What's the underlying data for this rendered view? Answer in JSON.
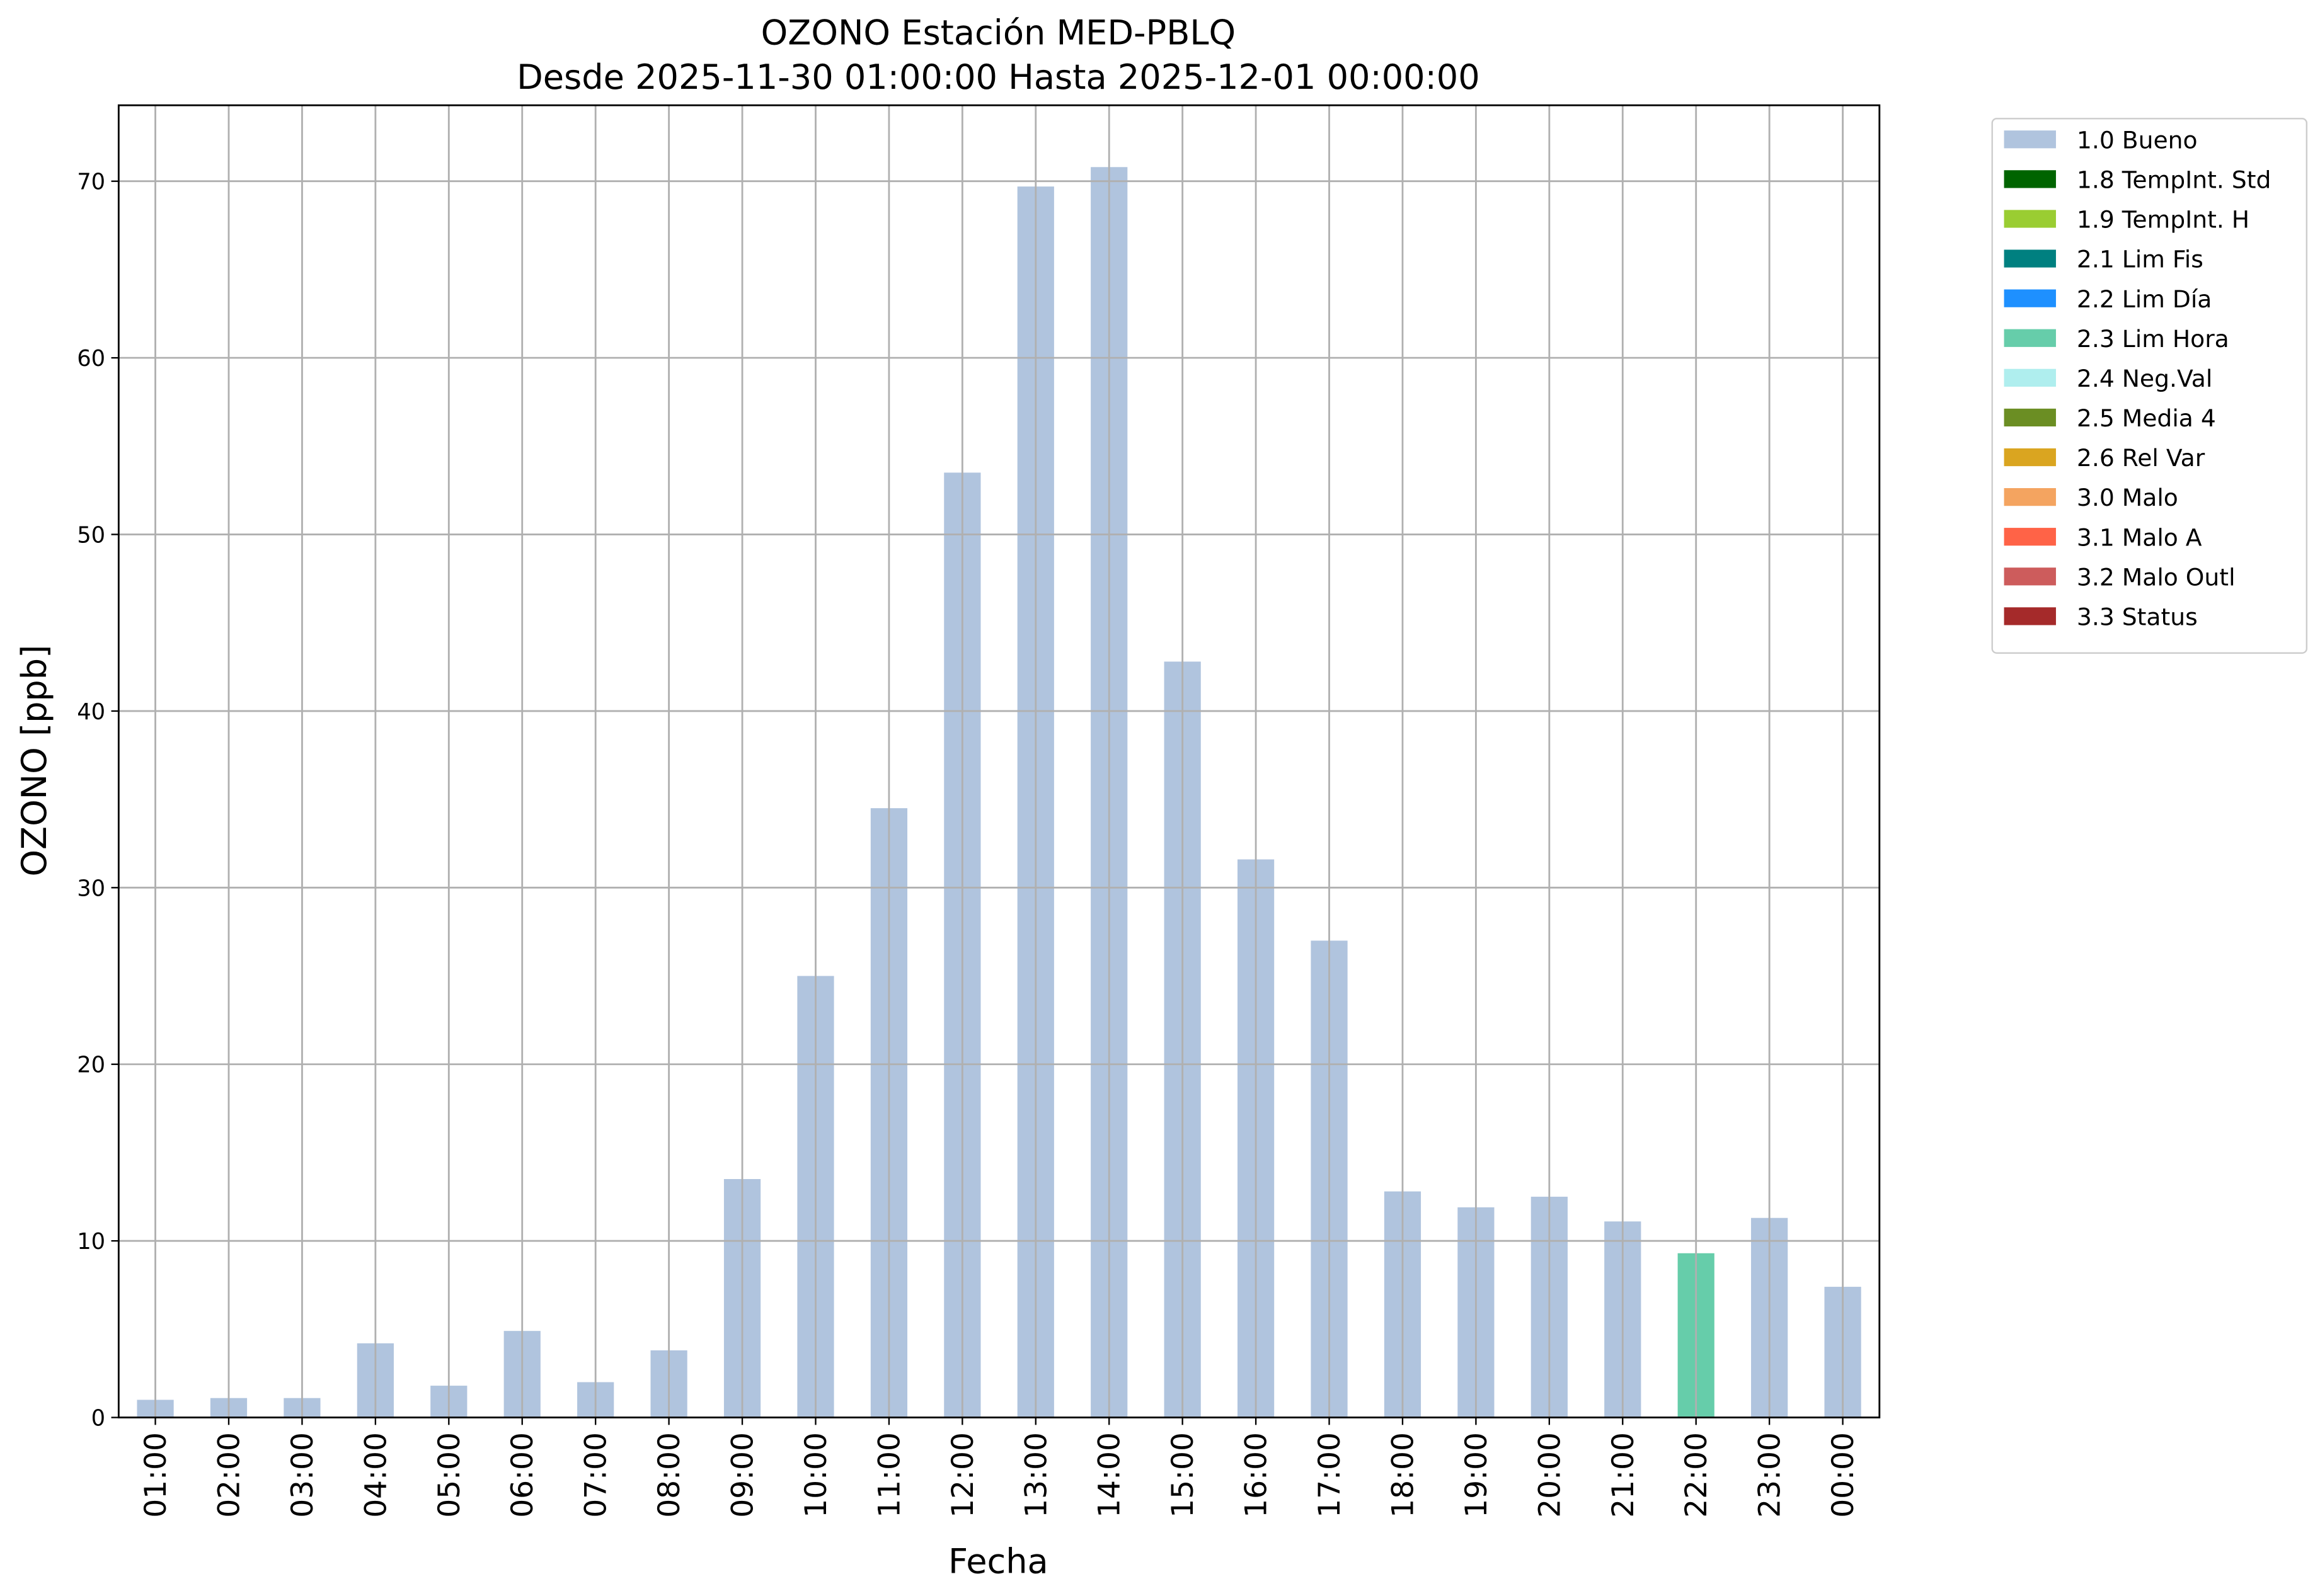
{
  "chart_data": {
    "type": "stacked_bar",
    "title": "OZONO Estación MED-PBLQ",
    "subtitle": "Desde 2025-11-30 01:00:00 Hasta 2025-12-01 00:00:00",
    "x_label": "Fecha",
    "y_label": "OZONO [ppb]",
    "categories": [
      "01:00",
      "02:00",
      "03:00",
      "04:00",
      "05:00",
      "06:00",
      "07:00",
      "08:00",
      "09:00",
      "10:00",
      "11:00",
      "12:00",
      "13:00",
      "14:00",
      "15:00",
      "16:00",
      "17:00",
      "18:00",
      "19:00",
      "20:00",
      "21:00",
      "22:00",
      "23:00",
      "00:00"
    ],
    "series": [
      {
        "name": "1.0 Bueno",
        "color": "#b0c4de",
        "values": [
          1.0,
          1.1,
          1.1,
          4.2,
          1.8,
          4.9,
          2.0,
          3.8,
          13.5,
          25.0,
          34.5,
          53.5,
          69.7,
          70.8,
          42.8,
          31.6,
          27.0,
          12.8,
          11.9,
          12.5,
          11.1,
          null,
          11.3,
          7.4
        ]
      },
      {
        "name": "1.8 TempInt. Std",
        "color": "#006400",
        "values": [
          null,
          null,
          null,
          null,
          null,
          null,
          null,
          null,
          null,
          null,
          null,
          null,
          null,
          null,
          null,
          null,
          null,
          null,
          null,
          null,
          null,
          null,
          null,
          null
        ]
      },
      {
        "name": "1.9 TempInt. H",
        "color": "#9acd32",
        "values": [
          null,
          null,
          null,
          null,
          null,
          null,
          null,
          null,
          null,
          null,
          null,
          null,
          null,
          null,
          null,
          null,
          null,
          null,
          null,
          null,
          null,
          null,
          null,
          null
        ]
      },
      {
        "name": "2.1 Lim Fis",
        "color": "#008080",
        "values": [
          null,
          null,
          null,
          null,
          null,
          null,
          null,
          null,
          null,
          null,
          null,
          null,
          null,
          null,
          null,
          null,
          null,
          null,
          null,
          null,
          null,
          null,
          null,
          null
        ]
      },
      {
        "name": "2.2 Lim Día",
        "color": "#1e90ff",
        "values": [
          null,
          null,
          null,
          null,
          null,
          null,
          null,
          null,
          null,
          null,
          null,
          null,
          null,
          null,
          null,
          null,
          null,
          null,
          null,
          null,
          null,
          null,
          null,
          null
        ]
      },
      {
        "name": "2.3 Lim Hora",
        "color": "#66cdaa",
        "values": [
          null,
          null,
          null,
          null,
          null,
          null,
          null,
          null,
          null,
          null,
          null,
          null,
          null,
          null,
          null,
          null,
          null,
          null,
          null,
          null,
          null,
          9.3,
          null,
          null
        ]
      },
      {
        "name": "2.4 Neg.Val",
        "color": "#afeeee",
        "values": [
          null,
          null,
          null,
          null,
          null,
          null,
          null,
          null,
          null,
          null,
          null,
          null,
          null,
          null,
          null,
          null,
          null,
          null,
          null,
          null,
          null,
          null,
          null,
          null
        ]
      },
      {
        "name": "2.5 Media 4",
        "color": "#6b8e23",
        "values": [
          null,
          null,
          null,
          null,
          null,
          null,
          null,
          null,
          null,
          null,
          null,
          null,
          null,
          null,
          null,
          null,
          null,
          null,
          null,
          null,
          null,
          null,
          null,
          null
        ]
      },
      {
        "name": "2.6 Rel Var",
        "color": "#daa520",
        "values": [
          null,
          null,
          null,
          null,
          null,
          null,
          null,
          null,
          null,
          null,
          null,
          null,
          null,
          null,
          null,
          null,
          null,
          null,
          null,
          null,
          null,
          null,
          null,
          null
        ]
      },
      {
        "name": "3.0 Malo",
        "color": "#f4a460",
        "values": [
          null,
          null,
          null,
          null,
          null,
          null,
          null,
          null,
          null,
          null,
          null,
          null,
          null,
          null,
          null,
          null,
          null,
          null,
          null,
          null,
          null,
          null,
          null,
          null
        ]
      },
      {
        "name": "3.1 Malo A",
        "color": "#ff6347",
        "values": [
          null,
          null,
          null,
          null,
          null,
          null,
          null,
          null,
          null,
          null,
          null,
          null,
          null,
          null,
          null,
          null,
          null,
          null,
          null,
          null,
          null,
          null,
          null,
          null
        ]
      },
      {
        "name": "3.2 Malo Outl",
        "color": "#cd5c5c",
        "values": [
          null,
          null,
          null,
          null,
          null,
          null,
          null,
          null,
          null,
          null,
          null,
          null,
          null,
          null,
          null,
          null,
          null,
          null,
          null,
          null,
          null,
          null,
          null,
          null
        ]
      },
      {
        "name": "3.3 Status",
        "color": "#a52a2a",
        "values": [
          null,
          null,
          null,
          null,
          null,
          null,
          null,
          null,
          null,
          null,
          null,
          null,
          null,
          null,
          null,
          null,
          null,
          null,
          null,
          null,
          null,
          null,
          null,
          null
        ]
      }
    ],
    "ylim": [
      0,
      74.3
    ],
    "yticks": [
      0,
      10,
      20,
      30,
      40,
      50,
      60,
      70
    ],
    "grid": true,
    "legend": "outside-right"
  }
}
